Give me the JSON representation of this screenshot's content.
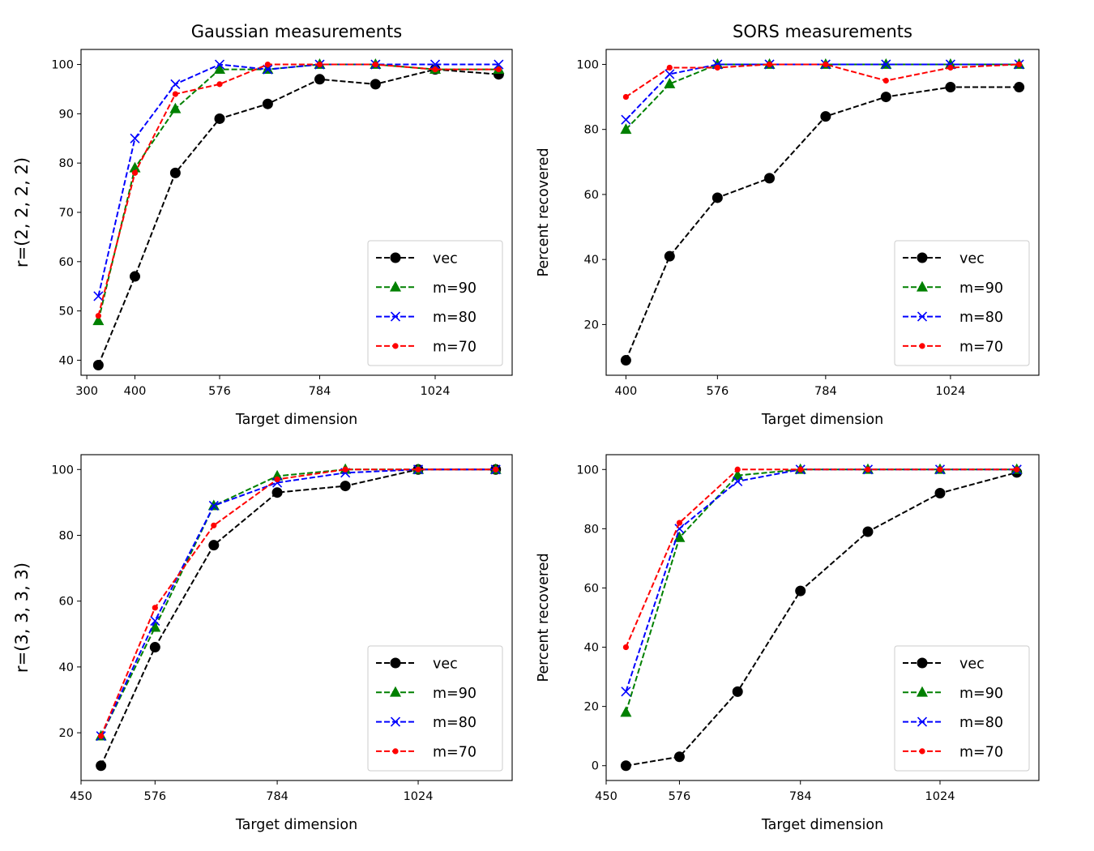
{
  "figure": {
    "col_titles": [
      "Gaussian measurements",
      "SORS measurements"
    ],
    "row_labels": [
      "r=(2, 2, 2, 2)",
      "r=(3, 3, 3, 3)"
    ]
  },
  "styles": {
    "vec": {
      "color": "#000000",
      "marker": "circle"
    },
    "m=90": {
      "color": "#008000",
      "marker": "triangle"
    },
    "m=80": {
      "color": "#0000ff",
      "marker": "x"
    },
    "m=70": {
      "color": "#ff0000",
      "marker": "point"
    }
  },
  "chart_data": [
    {
      "type": "line",
      "title": "Gaussian measurements",
      "xlabel": "Target dimension",
      "ylabel": "",
      "xlim": [
        288,
        1184
      ],
      "ylim": [
        36.95,
        103.05
      ],
      "xticks": [
        300,
        400,
        576,
        784,
        1024
      ],
      "yticks": [
        40,
        50,
        60,
        70,
        80,
        90,
        100
      ],
      "legend_position": "lower right",
      "legend": [
        "vec",
        "m=90",
        "m=80",
        "m=70"
      ],
      "series": [
        {
          "name": "vec",
          "x": [
            324,
            400,
            484,
            576,
            676,
            784,
            900,
            1024,
            1156
          ],
          "y": [
            39,
            57,
            78,
            89,
            92,
            97,
            96,
            99,
            98
          ]
        },
        {
          "name": "m=90",
          "x": [
            324,
            400,
            484,
            576,
            676,
            784,
            900,
            1024,
            1156
          ],
          "y": [
            48,
            79,
            91,
            99,
            99,
            100,
            100,
            99,
            99
          ]
        },
        {
          "name": "m=80",
          "x": [
            324,
            400,
            484,
            576,
            676,
            784,
            900,
            1024,
            1156
          ],
          "y": [
            53,
            85,
            96,
            100,
            99,
            100,
            100,
            100,
            100
          ]
        },
        {
          "name": "m=70",
          "x": [
            324,
            400,
            484,
            576,
            676,
            784,
            900,
            1024,
            1156
          ],
          "y": [
            49,
            78,
            94,
            96,
            100,
            100,
            100,
            99,
            99
          ]
        }
      ]
    },
    {
      "type": "line",
      "title": "SORS measurements",
      "xlabel": "Target dimension",
      "ylabel": "Percent recovered",
      "xlim": [
        362,
        1194
      ],
      "ylim": [
        4.4,
        104.6
      ],
      "xticks": [
        400,
        576,
        784,
        1024
      ],
      "yticks": [
        20,
        40,
        60,
        80,
        100
      ],
      "legend_position": "lower right",
      "legend": [
        "vec",
        "m=90",
        "m=80",
        "m=70"
      ],
      "series": [
        {
          "name": "vec",
          "x": [
            400,
            484,
            576,
            676,
            784,
            900,
            1024,
            1156
          ],
          "y": [
            9,
            41,
            59,
            65,
            84,
            90,
            93,
            93
          ]
        },
        {
          "name": "m=90",
          "x": [
            400,
            484,
            576,
            676,
            784,
            900,
            1024,
            1156
          ],
          "y": [
            80,
            94,
            100,
            100,
            100,
            100,
            100,
            100
          ]
        },
        {
          "name": "m=80",
          "x": [
            400,
            484,
            576,
            676,
            784,
            900,
            1024,
            1156
          ],
          "y": [
            83,
            97,
            100,
            100,
            100,
            100,
            100,
            100
          ]
        },
        {
          "name": "m=70",
          "x": [
            400,
            484,
            576,
            676,
            784,
            900,
            1024,
            1156
          ],
          "y": [
            90,
            99,
            99,
            100,
            100,
            95,
            99,
            100
          ]
        }
      ]
    },
    {
      "type": "line",
      "title": "",
      "xlabel": "Target dimension",
      "ylabel": "",
      "xlim": [
        450,
        1184
      ],
      "ylim": [
        5.5,
        104.5
      ],
      "xticks": [
        450,
        576,
        784,
        1024
      ],
      "yticks": [
        20,
        40,
        60,
        80,
        100
      ],
      "legend_position": "lower right",
      "legend": [
        "vec",
        "m=90",
        "m=80",
        "m=70"
      ],
      "series": [
        {
          "name": "vec",
          "x": [
            484,
            576,
            676,
            784,
            900,
            1024,
            1156
          ],
          "y": [
            10,
            46,
            77,
            93,
            95,
            100,
            100
          ]
        },
        {
          "name": "m=90",
          "x": [
            484,
            576,
            676,
            784,
            900,
            1024,
            1156
          ],
          "y": [
            19,
            52,
            89,
            98,
            100,
            100,
            100
          ]
        },
        {
          "name": "m=80",
          "x": [
            484,
            576,
            676,
            784,
            900,
            1024,
            1156
          ],
          "y": [
            19,
            54,
            89,
            96,
            99,
            100,
            100
          ]
        },
        {
          "name": "m=70",
          "x": [
            484,
            576,
            676,
            784,
            900,
            1024,
            1156
          ],
          "y": [
            19,
            58,
            83,
            97,
            100,
            100,
            100
          ]
        }
      ]
    },
    {
      "type": "line",
      "title": "",
      "xlabel": "Target dimension",
      "ylabel": "Percent recovered",
      "xlim": [
        450,
        1194
      ],
      "ylim": [
        -5,
        105
      ],
      "xticks": [
        450,
        576,
        784,
        1024
      ],
      "yticks": [
        0,
        20,
        40,
        60,
        80,
        100
      ],
      "legend_position": "lower right",
      "legend": [
        "vec",
        "m=90",
        "m=80",
        "m=70"
      ],
      "series": [
        {
          "name": "vec",
          "x": [
            484,
            576,
            676,
            784,
            900,
            1024,
            1156
          ],
          "y": [
            0,
            3,
            25,
            59,
            79,
            92,
            99
          ]
        },
        {
          "name": "m=90",
          "x": [
            484,
            576,
            676,
            784,
            900,
            1024,
            1156
          ],
          "y": [
            18,
            77,
            98,
            100,
            100,
            100,
            100
          ]
        },
        {
          "name": "m=80",
          "x": [
            484,
            576,
            676,
            784,
            900,
            1024,
            1156
          ],
          "y": [
            25,
            80,
            96,
            100,
            100,
            100,
            100
          ]
        },
        {
          "name": "m=70",
          "x": [
            484,
            576,
            676,
            784,
            900,
            1024,
            1156
          ],
          "y": [
            40,
            82,
            100,
            100,
            100,
            100,
            100
          ]
        }
      ]
    }
  ]
}
